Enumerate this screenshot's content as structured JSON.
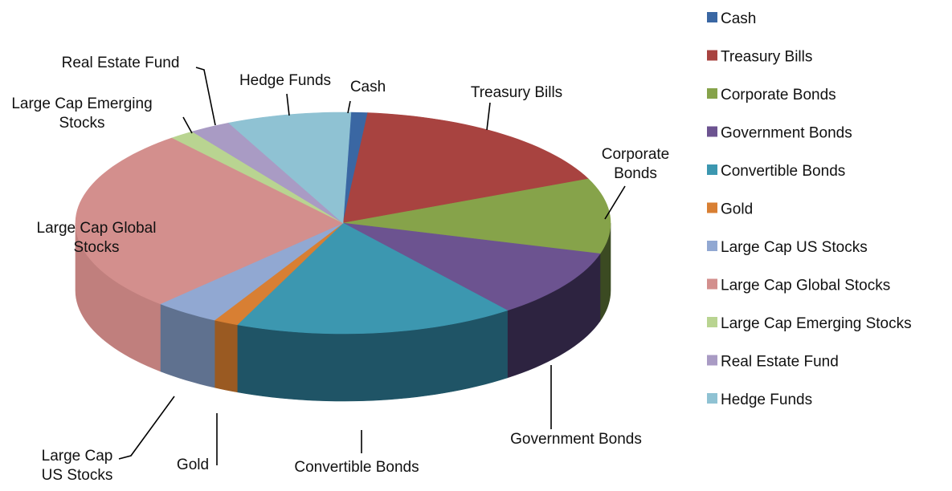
{
  "chart_data": {
    "type": "pie",
    "style": "3d",
    "categories": [
      "Cash",
      "Treasury Bills",
      "Corporate Bonds",
      "Government Bonds",
      "Convertible Bonds",
      "Gold",
      "Large Cap US Stocks",
      "Large Cap Global Stocks",
      "Large Cap Emerging Stocks",
      "Real Estate Fund",
      "Hedge Funds"
    ],
    "values": [
      1,
      17,
      11,
      10,
      17,
      1.5,
      4,
      27,
      1.5,
      2.5,
      7.5
    ],
    "colors": [
      "#3a67a3",
      "#a84340",
      "#86a34a",
      "#6c5390",
      "#3c97b0",
      "#d87f33",
      "#91a8d2",
      "#d38f8d",
      "#b9d491",
      "#a99bc4",
      "#8fc2d3"
    ],
    "side_colors": [
      "#284a75",
      "#6e2c2a",
      "#3b4a22",
      "#2d2340",
      "#1f5466",
      "#9a5a22",
      "#5f718f",
      "#c07f7d",
      "#8fa86c",
      "#7b6f92",
      "#5f8d9c"
    ],
    "slice_labels": [
      [
        "Cash"
      ],
      [
        "Treasury Bills"
      ],
      [
        "Corporate",
        "Bonds"
      ],
      [
        "Government  Bonds"
      ],
      [
        "Convertible Bonds"
      ],
      [
        "Gold"
      ],
      [
        "Large Cap",
        "US Stocks"
      ],
      [
        "Large Cap Global",
        "Stocks"
      ],
      [
        "Large Cap Emerging",
        "Stocks"
      ],
      [
        "Real Estate Fund"
      ],
      [
        "Hedge Funds"
      ]
    ],
    "legend": [
      "Cash",
      "Treasury Bills",
      "Corporate Bonds",
      "Government  Bonds",
      "Convertible Bonds",
      "Gold",
      "Large Cap US Stocks",
      "Large Cap Global Stocks",
      "Large Cap Emerging Stocks",
      "Real Estate Fund",
      "Hedge Funds"
    ],
    "legend_position": "right",
    "title": ""
  }
}
